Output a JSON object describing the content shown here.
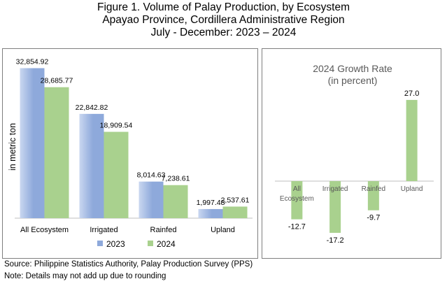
{
  "title": {
    "line1": "Figure 1. Volume of Palay Production, by Ecosystem",
    "line2": "Apayao Province, Cordillera Administrative Region",
    "line3": "July - December: 2023 – 2024"
  },
  "footer": {
    "source": "Source: Philippine Statistics Authority, Palay Production Survey (PPS)",
    "note": "Note: Details may not add up due to rounding"
  },
  "colors": {
    "s2023": "#8EA9DB",
    "s2024": "#A9D18E"
  },
  "chart_data": [
    {
      "type": "bar",
      "categories": [
        "All Ecosystem",
        "Irrigated",
        "Rainfed",
        "Upland"
      ],
      "series": [
        {
          "name": "2023",
          "values": [
            32854.92,
            22842.82,
            8014.63,
            1997.48
          ],
          "labels": [
            "32,854.92",
            "22,842.82",
            "8,014.63",
            "1,997.48"
          ]
        },
        {
          "name": "2024",
          "values": [
            28685.77,
            18909.54,
            7238.61,
            2537.61
          ],
          "labels": [
            "28,685.77",
            "18,909.54",
            "7,238.61",
            "2,537.61"
          ]
        }
      ],
      "ylabel": "in metric ton",
      "ylim": [
        0,
        34000
      ],
      "legend": "bottom",
      "grid": false
    },
    {
      "type": "bar",
      "title": "2024 Growth Rate",
      "subtitle": "(in percent)",
      "categories": [
        [
          "All",
          "Ecosystem"
        ],
        [
          "Irrigated"
        ],
        [
          "Rainfed"
        ],
        [
          "Upland"
        ]
      ],
      "values": [
        -12.7,
        -17.2,
        -9.7,
        27.0
      ],
      "labels": [
        "-12.7",
        "-17.2",
        "-9.7",
        "27.0"
      ],
      "ylim": [
        -20,
        30
      ],
      "grid": false
    }
  ]
}
